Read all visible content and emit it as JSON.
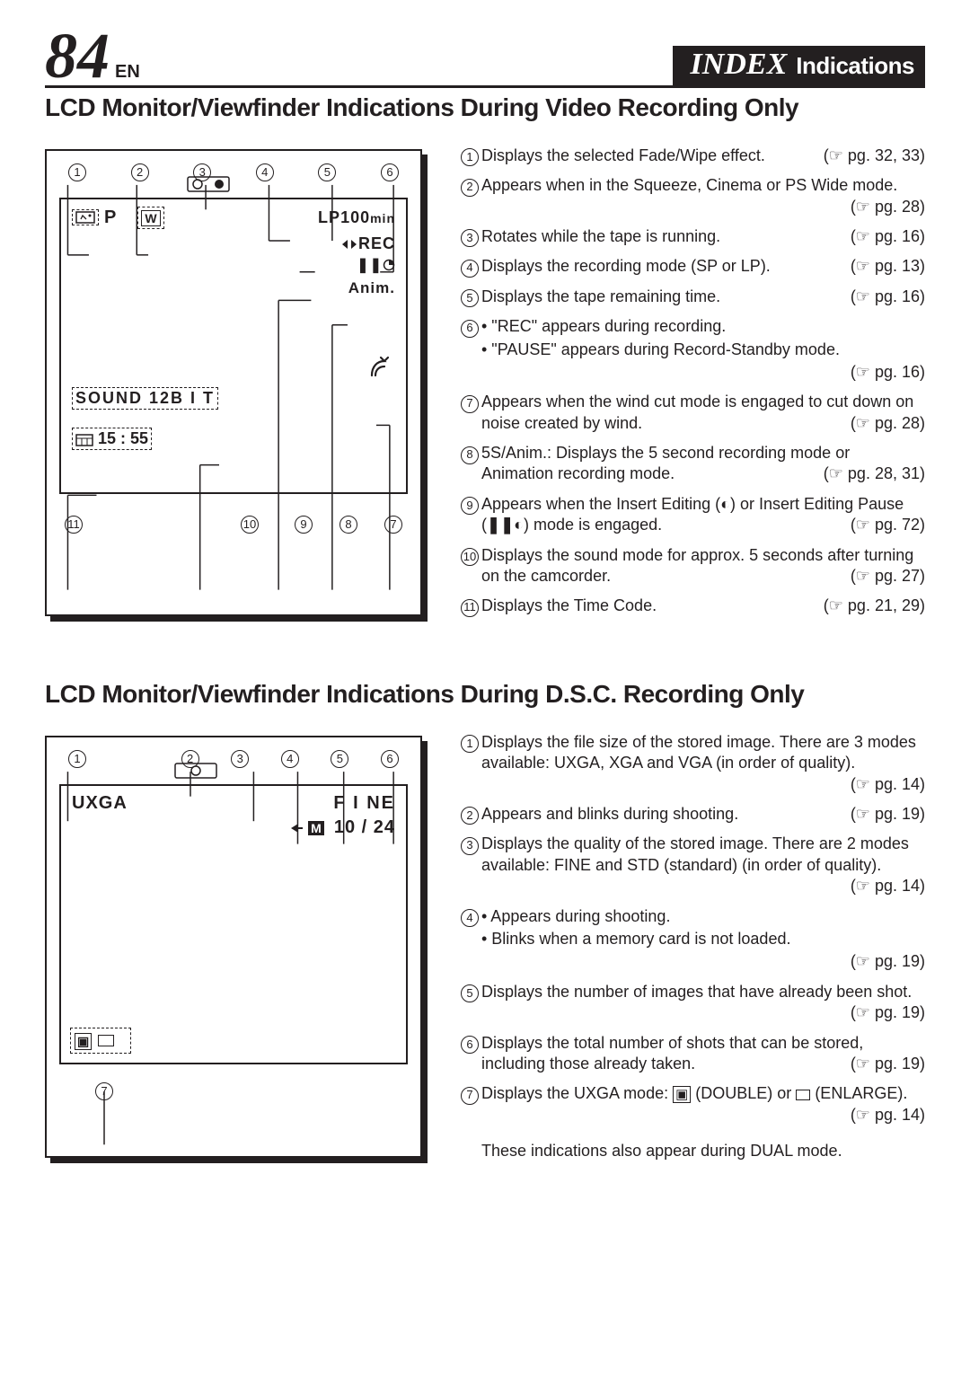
{
  "header": {
    "page_number": "84",
    "lang_code": "EN",
    "index_label": "INDEX",
    "index_sub": "Indications"
  },
  "section1": {
    "title": "LCD Monitor/Viewfinder Indications During Video Recording Only",
    "diagram": {
      "top_callouts": [
        "1",
        "2",
        "3",
        "4",
        "5",
        "6"
      ],
      "bottom_callouts": [
        "11",
        "10",
        "9",
        "8",
        "7"
      ],
      "line1_p": "P",
      "line1_w_icon": true,
      "line1_lp": "LP",
      "line1_time": "100",
      "line1_min": "min",
      "rec_text": "REC",
      "anim_text": "Anim.",
      "sound_text": "SOUND  12B I T",
      "timecode": "15 : 55"
    },
    "items": [
      {
        "n": "1",
        "text": "Displays the selected Fade/Wipe effect.",
        "pg": "pg. 32, 33"
      },
      {
        "n": "2",
        "text": "Appears when in the Squeeze, Cinema or PS Wide mode.",
        "pg": "pg. 28"
      },
      {
        "n": "3",
        "text": "Rotates while the tape is running.",
        "pg": "pg. 16"
      },
      {
        "n": "4",
        "text": "Displays the recording mode (SP or LP).",
        "pg": "pg. 13"
      },
      {
        "n": "5",
        "text": "Displays the tape remaining time.",
        "pg": "pg. 16"
      },
      {
        "n": "6",
        "bullets": [
          "\"REC\" appears during recording.",
          "\"PAUSE\" appears during Record-Standby mode."
        ],
        "pg": "pg. 16"
      },
      {
        "n": "7",
        "text": "Appears when the wind cut mode is engaged to cut down on noise created by wind.",
        "pg": "pg. 28"
      },
      {
        "n": "8",
        "text": "5S/Anim.: Displays the 5 second recording mode or Animation recording mode.",
        "pg": "pg. 28, 31"
      },
      {
        "n": "9",
        "text_html": "Appears when the Insert Editing (<b>◐</b>) or Insert Editing Pause (<b>❚❚◐</b>) mode is engaged.",
        "pg": "pg. 72"
      },
      {
        "n": "10",
        "text": "Displays the sound mode for approx. 5 seconds after turning on the camcorder.",
        "pg": "pg. 27"
      },
      {
        "n": "11",
        "text": "Displays the Time Code.",
        "pg": "pg. 21, 29"
      }
    ]
  },
  "section2": {
    "title": "LCD Monitor/Viewfinder Indications During D.S.C. Recording Only",
    "diagram": {
      "top_callouts": [
        "1",
        "2",
        "3",
        "4",
        "5",
        "6"
      ],
      "bottom_callout": "7",
      "uxga": "UXGA",
      "fine": "F I NE",
      "count": "10 / 24",
      "m_icon": "M"
    },
    "items": [
      {
        "n": "1",
        "text": "Displays the file size of the stored image. There are 3 modes available: UXGA, XGA and VGA (in order of quality).",
        "pg": "pg. 14"
      },
      {
        "n": "2",
        "text": "Appears and blinks during shooting.",
        "pg": "pg. 19"
      },
      {
        "n": "3",
        "text": "Displays the quality of the stored image. There are 2 modes available: FINE and STD (standard) (in order of quality).",
        "pg": "pg. 14"
      },
      {
        "n": "4",
        "bullets": [
          "Appears during shooting.",
          "Blinks when a memory card is not loaded."
        ],
        "pg": "pg. 19"
      },
      {
        "n": "5",
        "text": "Displays the number of images that have already been shot.",
        "pg": "pg. 19"
      },
      {
        "n": "6",
        "text": "Displays the total number of shots that can be stored, including those already taken.",
        "pg": "pg. 19"
      },
      {
        "n": "7",
        "text_html": "Displays the UXGA mode: <span style='border:1.5px solid #231f20;padding:0 2px;font-size:15px'>▣</span> (DOUBLE) or <span style='border:1.5px solid #231f20;display:inline-block;width:16px;height:12px;vertical-align:middle'></span> (ENLARGE).",
        "pg": "pg. 14"
      }
    ],
    "footnote": "These indications also appear during DUAL mode."
  }
}
